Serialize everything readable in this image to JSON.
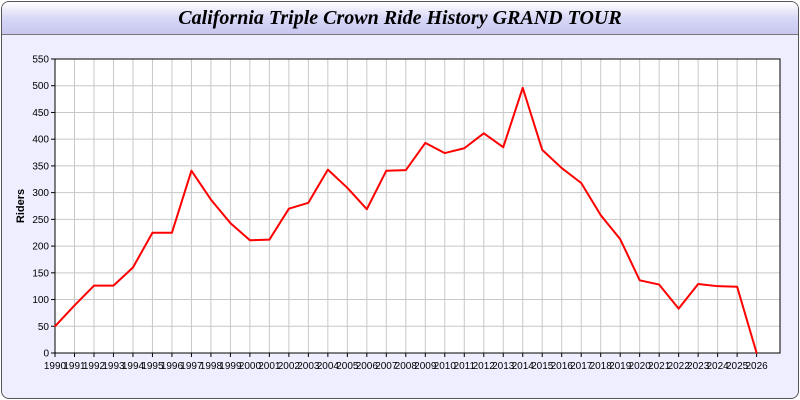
{
  "chart_data": {
    "type": "line",
    "title": "California Triple Crown Ride History GRAND TOUR",
    "xlabel": "",
    "ylabel": "Riders",
    "ylim": [
      0,
      550
    ],
    "xlim": [
      1990,
      2027.2
    ],
    "yticks": [
      0,
      50,
      100,
      150,
      200,
      250,
      300,
      350,
      400,
      450,
      500,
      550
    ],
    "grid": true,
    "x": [
      1990,
      1991,
      1992,
      1993,
      1994,
      1995,
      1996,
      1997,
      1998,
      1999,
      2000,
      2001,
      2002,
      2003,
      2004,
      2005,
      2006,
      2007,
      2008,
      2009,
      2010,
      2011,
      2012,
      2013,
      2014,
      2015,
      2016,
      2017,
      2018,
      2019,
      2020,
      2021,
      2022,
      2023,
      2024,
      2025,
      2026
    ],
    "series": [
      {
        "color": "#ff0000",
        "values": [
          50,
          89,
          126,
          126,
          160,
          225,
          225,
          341,
          287,
          243,
          211,
          212,
          270,
          281,
          343,
          309,
          269,
          341,
          342,
          393,
          374,
          383,
          411,
          385,
          496,
          380,
          346,
          318,
          258,
          213,
          136,
          128,
          83,
          129,
          125,
          124,
          0
        ]
      }
    ]
  }
}
